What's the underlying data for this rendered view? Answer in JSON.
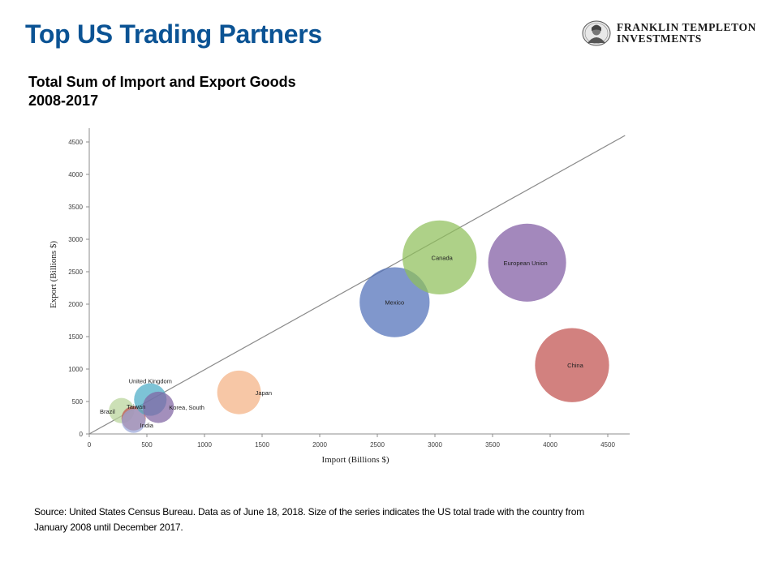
{
  "slide": {
    "title": "Top US Trading Partners"
  },
  "logo": {
    "line1": "FRANKLIN TEMPLETON",
    "line2": "INVESTMENTS",
    "icon": "portrait-seal-icon"
  },
  "chart_title": {
    "line1": "Total Sum of Import and Export Goods",
    "line2": "2008-2017"
  },
  "chart_data": {
    "type": "bubble",
    "xlabel": "Import (Billions $)",
    "ylabel": "Export (Billions $)",
    "xlim": [
      0,
      4700
    ],
    "ylim": [
      0,
      4700
    ],
    "xticks": [
      0,
      500,
      1000,
      1500,
      2000,
      2500,
      3000,
      3500,
      4000,
      4500
    ],
    "yticks": [
      0,
      500,
      1000,
      1500,
      2000,
      2500,
      3000,
      3500,
      4000,
      4500
    ],
    "reference_line": {
      "from": [
        0,
        0
      ],
      "to": [
        4650,
        4600
      ],
      "color": "#8a8a8a"
    },
    "grid": false,
    "legend": "none",
    "series": [
      {
        "name": "Brazil",
        "x": 280,
        "y": 360,
        "size": 650,
        "color": "#b8d49a"
      },
      {
        "name": "India",
        "x": 385,
        "y": 240,
        "size": 600,
        "color": "#c0504d"
      },
      {
        "name": "Taiwan",
        "x": 385,
        "y": 200,
        "size": 580,
        "color": "#9aa6d8"
      },
      {
        "name": "United Kingdom",
        "x": 530,
        "y": 530,
        "size": 1080,
        "color": "#4bacc6"
      },
      {
        "name": "Korea, South",
        "x": 600,
        "y": 410,
        "size": 1000,
        "color": "#8064a2"
      },
      {
        "name": "Japan",
        "x": 1300,
        "y": 640,
        "size": 1950,
        "color": "#f4b183"
      },
      {
        "name": "Mexico",
        "x": 2650,
        "y": 2030,
        "size": 5000,
        "color": "#4f6fb8"
      },
      {
        "name": "Canada",
        "x": 3040,
        "y": 2720,
        "size": 5600,
        "color": "#8fbf5a"
      },
      {
        "name": "European Union",
        "x": 3800,
        "y": 2640,
        "size": 6200,
        "color": "#7f5aa2"
      },
      {
        "name": "China",
        "x": 4190,
        "y": 1060,
        "size": 5600,
        "color": "#c0504d"
      }
    ]
  },
  "source": {
    "text": "Source: United States Census Bureau. Data as of June 18, 2018. Size of the series indicates the US total trade with the country from January 2008 until December 2017."
  }
}
